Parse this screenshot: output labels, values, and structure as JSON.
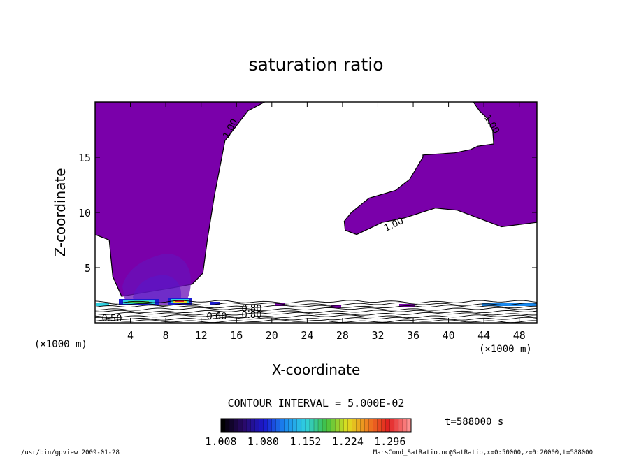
{
  "chart_data": {
    "type": "contour",
    "title": "saturation ratio",
    "xlabel": "X-coordinate",
    "ylabel": "Z-coordinate",
    "x_unit": "(×1000 m)",
    "z_unit": "(×1000 m)",
    "xlim": [
      0,
      50
    ],
    "ylim": [
      0,
      20
    ],
    "x_ticks": [
      4,
      8,
      12,
      16,
      20,
      24,
      28,
      32,
      36,
      40,
      44,
      48
    ],
    "y_ticks": [
      5,
      10,
      15
    ],
    "contour_labels": [
      "1.00",
      "1.00",
      "1.00",
      "0.50",
      "0.60",
      "0.80",
      "0.80"
    ],
    "contour_interval": "CONTOUR INTERVAL = 5.000E-02",
    "colorbar": {
      "ticks": [
        "1.008",
        "1.080",
        "1.152",
        "1.224",
        "1.296"
      ],
      "min": 1.008,
      "max": 1.332
    },
    "time_label": "t=588000 s",
    "footer_left": "/usr/bin/gpview  2009-01-28",
    "footer_right": "MarsCond_SatRatio.nc@SatRatio,x=0:50000,z=0:20000,t=588000",
    "fill_color": "#7a00aa",
    "colormap": [
      "#000000",
      "#2a0a6a",
      "#1a1ad0",
      "#1a8af0",
      "#30d0e0",
      "#40c040",
      "#e0e020",
      "#f08020",
      "#e02020",
      "#ff9090"
    ],
    "regions": [
      {
        "name": "upper-left-supersaturated",
        "level": 1.0,
        "boundary": [
          [
            0,
            20
          ],
          [
            19.2,
            20
          ],
          [
            17.3,
            19.2
          ],
          [
            14.7,
            16.5
          ],
          [
            13.5,
            11.5
          ],
          [
            12.7,
            7.5
          ],
          [
            12.2,
            4.5
          ],
          [
            11,
            3.5
          ],
          [
            9,
            3.2
          ],
          [
            6,
            2.8
          ],
          [
            3,
            2.4
          ],
          [
            2,
            4.2
          ],
          [
            1.6,
            7.5
          ],
          [
            0,
            8
          ]
        ]
      },
      {
        "name": "upper-right-supersaturated",
        "level": 1.0,
        "boundary": [
          [
            42.8,
            20
          ],
          [
            50,
            20
          ],
          [
            50,
            9.1
          ],
          [
            46,
            8.7
          ],
          [
            41,
            10.2
          ],
          [
            38.5,
            10.4
          ],
          [
            35,
            9.5
          ],
          [
            32.5,
            9.1
          ],
          [
            29.6,
            8
          ],
          [
            28.3,
            8.4
          ],
          [
            28.2,
            9.2
          ],
          [
            29,
            10
          ],
          [
            31,
            11.3
          ],
          [
            34,
            12
          ],
          [
            35.6,
            13
          ],
          [
            37.1,
            15
          ],
          [
            37.1,
            15.2
          ],
          [
            40.7,
            15.4
          ],
          [
            42.5,
            15.7
          ],
          [
            43.3,
            16
          ],
          [
            45.1,
            16.2
          ],
          [
            45,
            17.4
          ],
          [
            44.4,
            18.5
          ],
          [
            43.5,
            19.2
          ]
        ]
      }
    ]
  }
}
